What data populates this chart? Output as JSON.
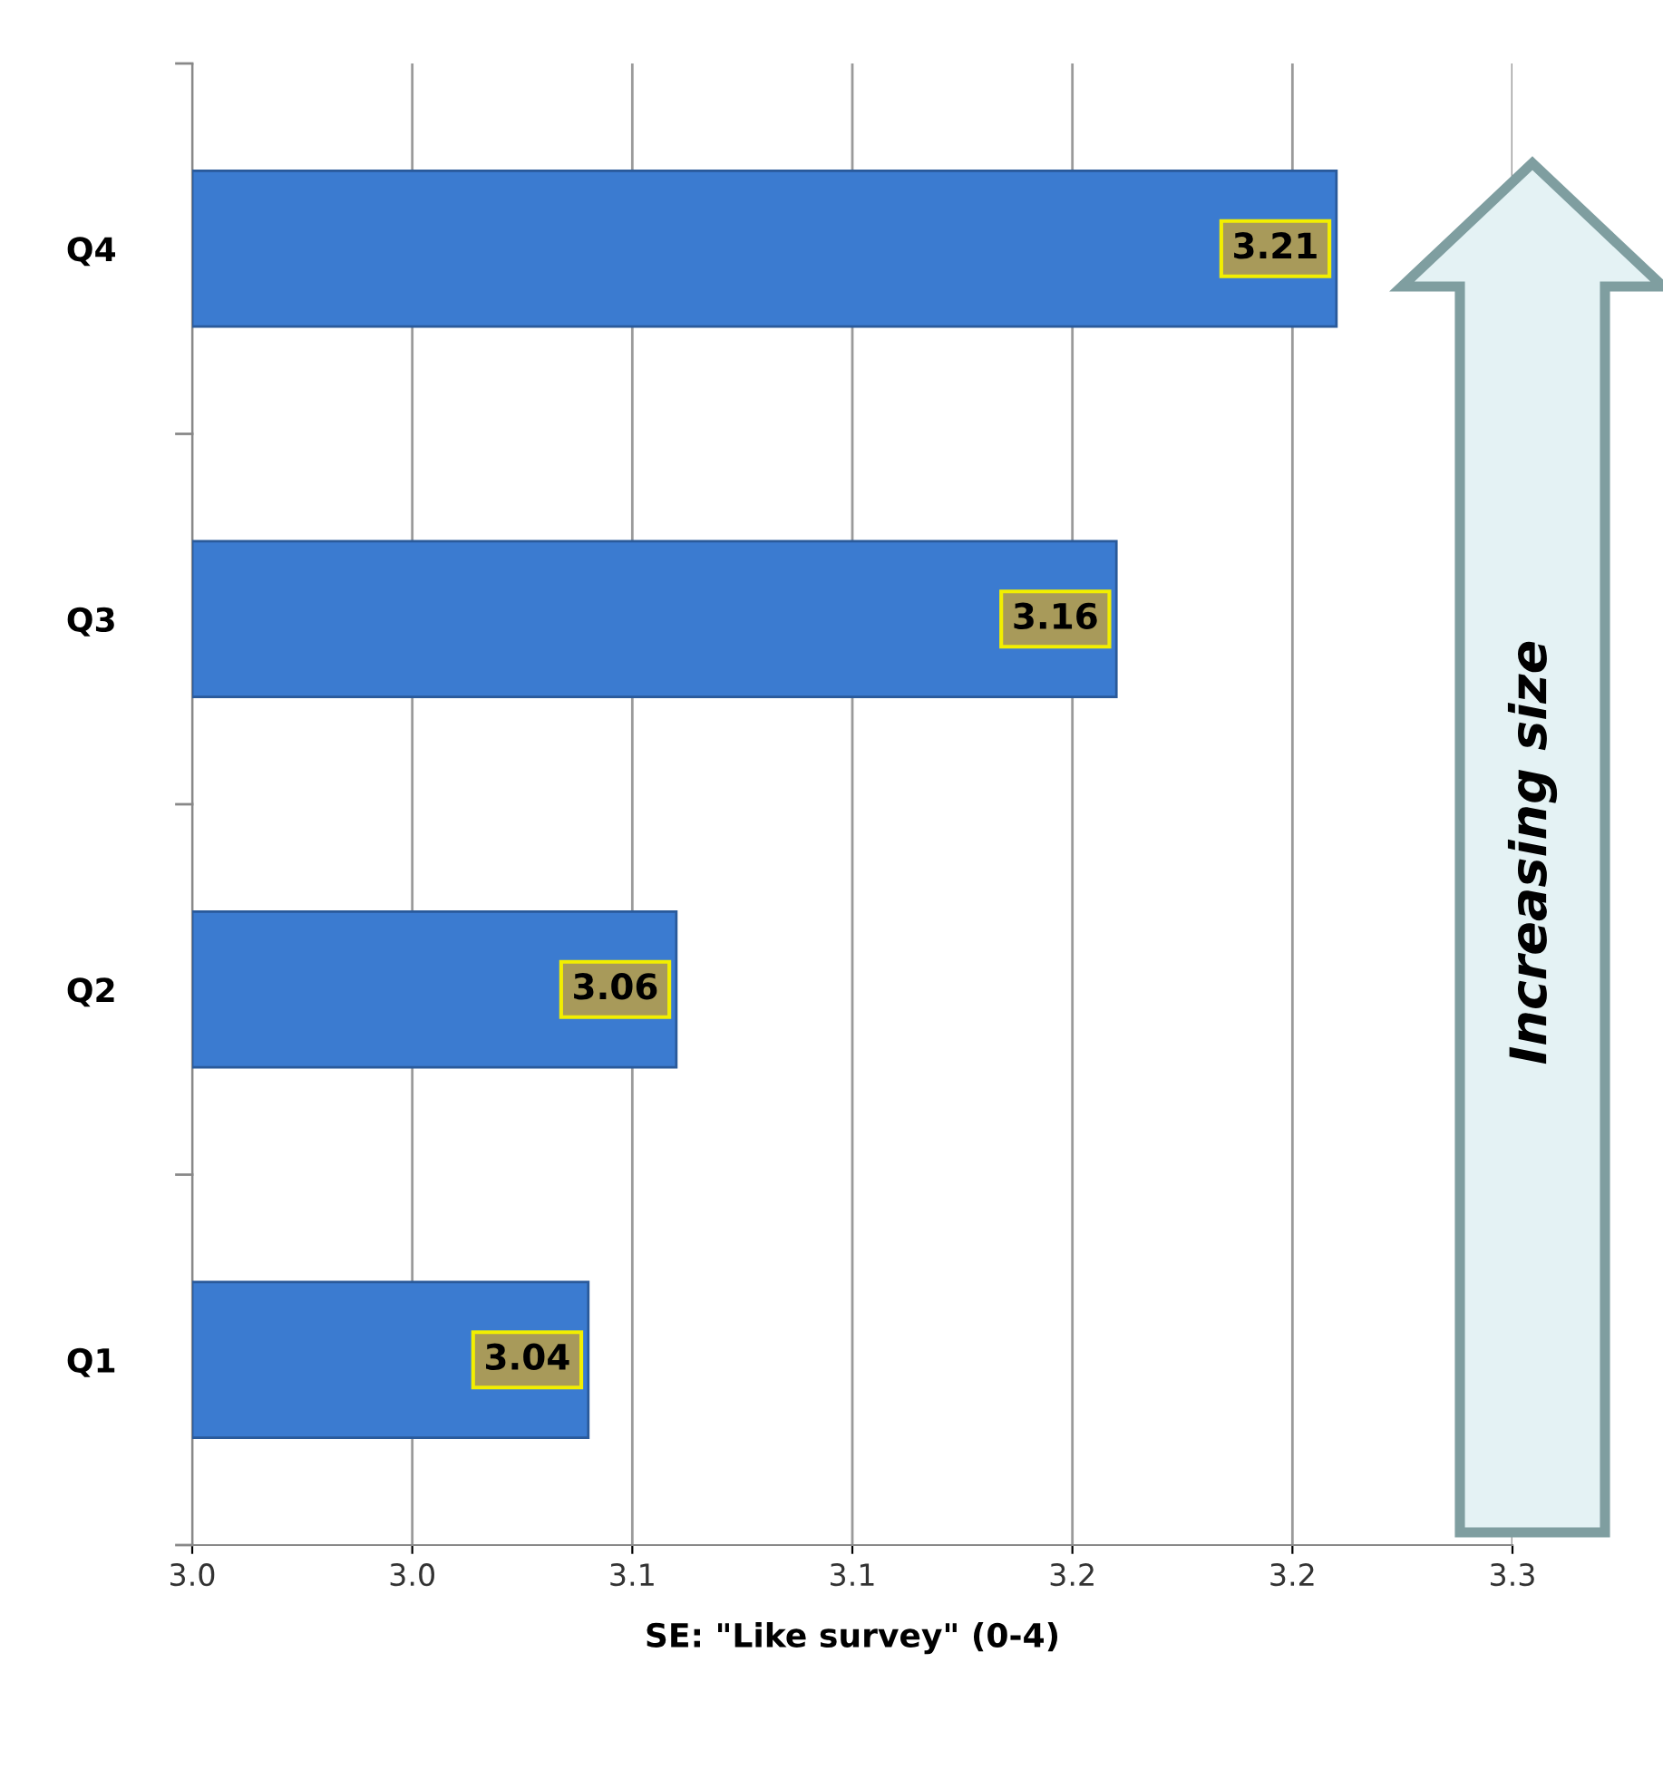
{
  "chart_data": {
    "type": "bar",
    "orientation": "horizontal",
    "xlabel": "SE: \"Like survey\" (0-4)",
    "categories": [
      "Q4",
      "Q3",
      "Q2",
      "Q1"
    ],
    "values": [
      3.21,
      3.16,
      3.06,
      3.04
    ],
    "color": "#3b7bd0",
    "data_labels": true,
    "xlim": [
      2.95,
      3.25
    ],
    "xticks": [
      {
        "value": 2.95,
        "label": "3.0"
      },
      {
        "value": 3.0,
        "label": "3.0"
      },
      {
        "value": 3.05,
        "label": "3.1"
      },
      {
        "value": 3.1,
        "label": "3.1"
      },
      {
        "value": 3.15,
        "label": "3.2"
      },
      {
        "value": 3.2,
        "label": "3.2"
      },
      {
        "value": 3.25,
        "label": "3.3"
      }
    ],
    "grid": "x",
    "annotations": [
      "Increasing size"
    ]
  }
}
